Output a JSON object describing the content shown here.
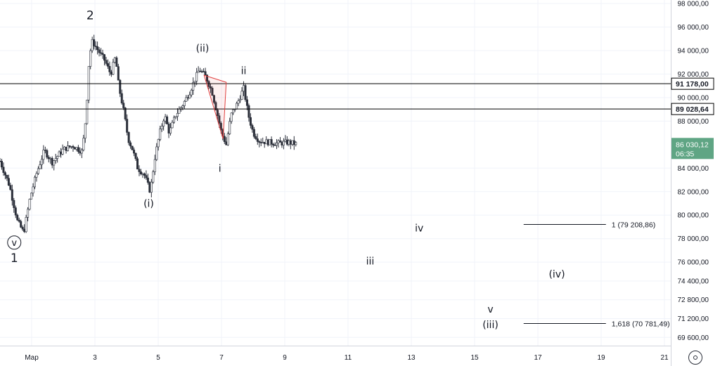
{
  "chart_data": {
    "type": "candlestick",
    "y_axis": {
      "side": "right",
      "range": [
        68900,
        98300
      ],
      "ticks": [
        {
          "value": 98000,
          "label": "98 000,00"
        },
        {
          "value": 96000,
          "label": "96 000,00"
        },
        {
          "value": 94000,
          "label": "94 000,00"
        },
        {
          "value": 92000,
          "label": "92 000,00"
        },
        {
          "value": 90000,
          "label": "90 000,00"
        },
        {
          "value": 88000,
          "label": "88 000,00"
        },
        {
          "value": 84000,
          "label": "84 000,00"
        },
        {
          "value": 82000,
          "label": "82 000,00"
        },
        {
          "value": 80000,
          "label": "80 000,00"
        },
        {
          "value": 78000,
          "label": "78 000,00"
        },
        {
          "value": 76000,
          "label": "76 000,00"
        },
        {
          "value": 74400,
          "label": "74 400,00"
        },
        {
          "value": 72800,
          "label": "72 800,00"
        },
        {
          "value": 71200,
          "label": "71 200,00"
        },
        {
          "value": 69600,
          "label": "69 600,00"
        }
      ]
    },
    "x_axis": {
      "unit": "day",
      "range": [
        0.0,
        21.2
      ],
      "ticks": [
        {
          "value": 1,
          "label": "Мар"
        },
        {
          "value": 3,
          "label": "3"
        },
        {
          "value": 5,
          "label": "5"
        },
        {
          "value": 7,
          "label": "7"
        },
        {
          "value": 9,
          "label": "9"
        },
        {
          "value": 11,
          "label": "11"
        },
        {
          "value": 13,
          "label": "13"
        },
        {
          "value": 15,
          "label": "15"
        },
        {
          "value": 17,
          "label": "17"
        },
        {
          "value": 19,
          "label": "19"
        },
        {
          "value": 21,
          "label": "21"
        }
      ]
    },
    "path_points": [
      [
        0.0,
        84600
      ],
      [
        0.3,
        82500
      ],
      [
        0.55,
        79500
      ],
      [
        0.75,
        78500
      ],
      [
        0.95,
        81500
      ],
      [
        1.15,
        83500
      ],
      [
        1.4,
        85500
      ],
      [
        1.65,
        84500
      ],
      [
        2.0,
        85600
      ],
      [
        2.3,
        85900
      ],
      [
        2.6,
        85400
      ],
      [
        2.72,
        88500
      ],
      [
        2.82,
        93500
      ],
      [
        2.92,
        94800
      ],
      [
        3.1,
        94000
      ],
      [
        3.3,
        93200
      ],
      [
        3.5,
        92000
      ],
      [
        3.65,
        93500
      ],
      [
        3.75,
        91000
      ],
      [
        3.9,
        89000
      ],
      [
        4.05,
        86500
      ],
      [
        4.2,
        85500
      ],
      [
        4.35,
        84000
      ],
      [
        4.55,
        83500
      ],
      [
        4.75,
        82000
      ],
      [
        4.9,
        85000
      ],
      [
        5.05,
        87000
      ],
      [
        5.2,
        88500
      ],
      [
        5.35,
        87000
      ],
      [
        5.55,
        88500
      ],
      [
        5.8,
        89500
      ],
      [
        6.0,
        90500
      ],
      [
        6.15,
        91500
      ],
      [
        6.3,
        92400
      ],
      [
        6.5,
        91800
      ],
      [
        6.7,
        90500
      ],
      [
        6.85,
        88800
      ],
      [
        7.0,
        87000
      ],
      [
        7.15,
        86000
      ],
      [
        7.3,
        88500
      ],
      [
        7.5,
        89500
      ],
      [
        7.7,
        90800
      ],
      [
        7.85,
        88500
      ],
      [
        8.0,
        87000
      ],
      [
        8.2,
        86300
      ],
      [
        8.5,
        86200
      ],
      [
        8.8,
        86100
      ],
      [
        9.1,
        86200
      ],
      [
        9.4,
        86030
      ]
    ],
    "horizontal_lines": [
      {
        "value": 91178.0,
        "label": "91 178,00",
        "color": "#000000"
      },
      {
        "value": 89028.64,
        "label": "89 028,64",
        "color": "#000000"
      }
    ],
    "current_price": {
      "value": 86030.12,
      "label": "86 030,12",
      "countdown": "06:35",
      "color": "#5fa584"
    },
    "fib_levels": [
      {
        "x_start": 16.55,
        "x_end": 19.15,
        "value": 79208.86,
        "label": "1 (79 208,86)"
      },
      {
        "x_start": 16.55,
        "x_end": 19.15,
        "value": 70781.49,
        "label": "1,618 (70 781,49)"
      }
    ],
    "annotations": [
      {
        "text": "2",
        "x": 2.85,
        "y": 96650,
        "size": "large"
      },
      {
        "text": "v",
        "x": 0.45,
        "y": 77400,
        "size": "small",
        "circled": true
      },
      {
        "text": "1",
        "x": 0.45,
        "y": 76000,
        "size": "large"
      },
      {
        "text": "(ii)",
        "x": 6.4,
        "y": 93900,
        "size": "medium"
      },
      {
        "text": "ii",
        "x": 7.7,
        "y": 92000,
        "size": "medium"
      },
      {
        "text": "i",
        "x": 6.95,
        "y": 83700,
        "size": "medium"
      },
      {
        "text": "(i)",
        "x": 4.7,
        "y": 80700,
        "size": "medium"
      },
      {
        "text": "iv",
        "x": 13.25,
        "y": 78600,
        "size": "medium"
      },
      {
        "text": "iii",
        "x": 11.7,
        "y": 75800,
        "size": "medium"
      },
      {
        "text": "(iv)",
        "x": 17.6,
        "y": 74700,
        "size": "medium"
      },
      {
        "text": "v",
        "x": 15.5,
        "y": 71700,
        "size": "medium"
      },
      {
        "text": "(iii)",
        "x": 15.5,
        "y": 70400,
        "size": "medium"
      }
    ],
    "triangle": {
      "color": "#e03e3e",
      "points": [
        [
          6.45,
          91900
        ],
        [
          7.15,
          91300
        ],
        [
          7.05,
          86500
        ]
      ]
    },
    "colors": {
      "candles": "#2a2e39",
      "drawings": "#e03e3e",
      "grid": "#f0f3fa",
      "axis_border": "#d1d4dc"
    }
  },
  "controls": {
    "settings_icon": "gear-icon"
  }
}
